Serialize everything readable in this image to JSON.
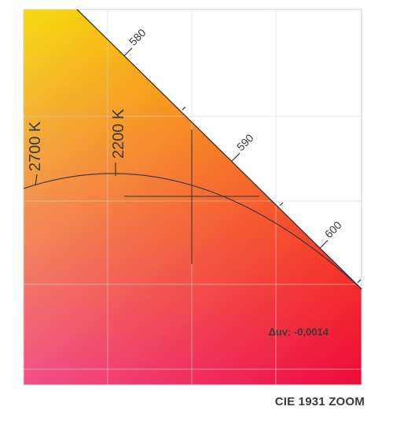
{
  "chart_data": {
    "type": "chromaticity-zoom",
    "caption": "CIE 1931 ZOOM",
    "colors": {
      "corner_top_left": "#f4dc12",
      "corner_top_right": "#ff8a00",
      "corner_bottom_left": "#f2508a",
      "corner_bottom_right": "#ee0a3a",
      "grid": "#d6d6d6",
      "line": "#333333",
      "text_dark": "#3a3a3a",
      "text_light": "#ffffff"
    },
    "grid": true,
    "spectral_locus": {
      "wavelength_ticks": [
        {
          "label": "580"
        },
        {
          "label": "590"
        },
        {
          "label": "600"
        }
      ]
    },
    "planckian_locus": {
      "cct_ticks": [
        {
          "label": "2700 K"
        },
        {
          "label": "2200 K"
        }
      ]
    },
    "measurement": {
      "marker": "crosshair",
      "duv_label": "Δuv: -0,0014"
    }
  }
}
